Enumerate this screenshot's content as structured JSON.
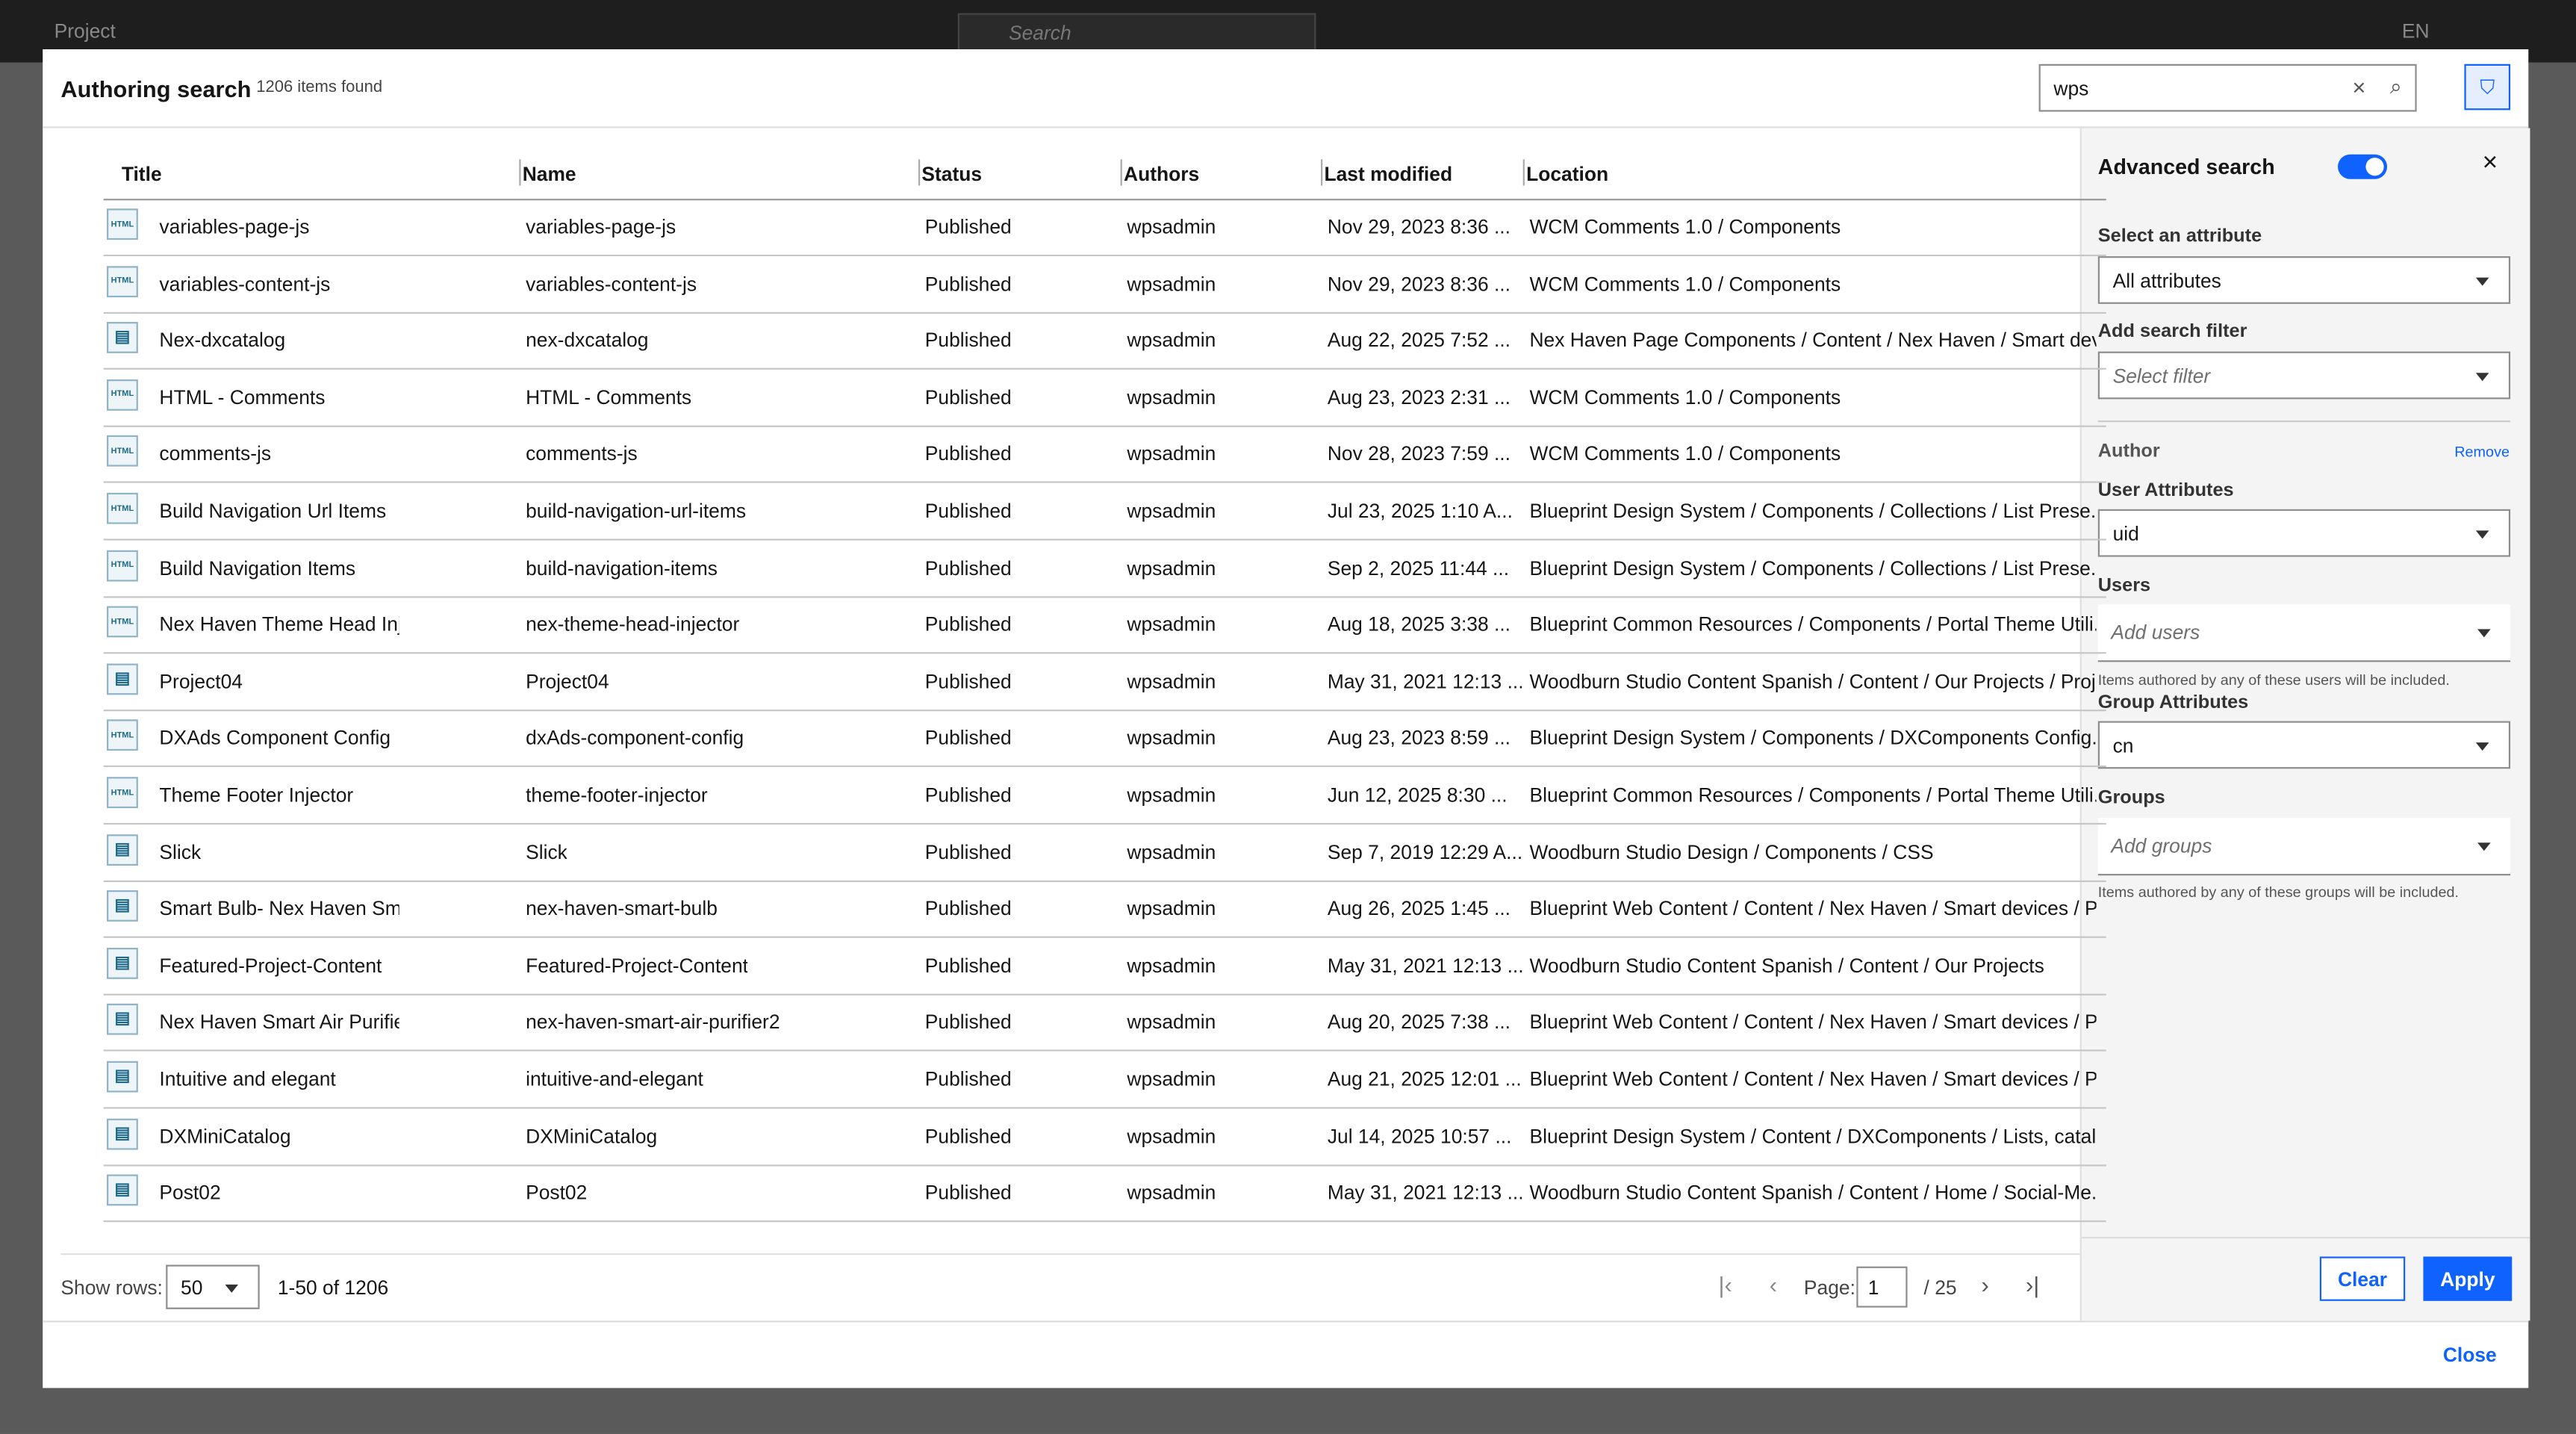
{
  "topbar": {
    "project": "Project",
    "search": "Search",
    "language": "EN"
  },
  "header": {
    "title": "Authoring search",
    "count": "1206 items found",
    "query": "wps"
  },
  "table": {
    "columns": [
      "Title",
      "Name",
      "Status",
      "Authors",
      "Last modified",
      "Location"
    ],
    "html_badge": "HTML",
    "icon_types": [
      "html",
      "html",
      "doc",
      "html",
      "html",
      "html",
      "html",
      "html",
      "doc",
      "html",
      "html",
      "doc",
      "doc",
      "doc",
      "doc",
      "doc",
      "doc",
      "doc"
    ],
    "rows": [
      [
        "variables-page-js",
        "variables-page-js",
        "Published",
        "wpsadmin",
        "Nov 29, 2023 8:36 ...",
        "WCM Comments 1.0 / Components"
      ],
      [
        "variables-content-js",
        "variables-content-js",
        "Published",
        "wpsadmin",
        "Nov 29, 2023 8:36 ...",
        "WCM Comments 1.0 / Components"
      ],
      [
        "Nex-dxcatalog",
        "nex-dxcatalog",
        "Published",
        "wpsadmin",
        "Aug 22, 2025 7:52 ...",
        "Nex Haven Page Components / Content / Nex Haven / Smart dev..."
      ],
      [
        "HTML - Comments",
        "HTML - Comments",
        "Published",
        "wpsadmin",
        "Aug 23, 2023 2:31 ...",
        "WCM Comments 1.0 / Components"
      ],
      [
        "comments-js",
        "comments-js",
        "Published",
        "wpsadmin",
        "Nov 28, 2023 7:59 ...",
        "WCM Comments 1.0 / Components"
      ],
      [
        "Build Navigation Url Items",
        "build-navigation-url-items",
        "Published",
        "wpsadmin",
        "Jul 23, 2025 1:10 A...",
        "Blueprint Design System / Components / Collections / List Prese..."
      ],
      [
        "Build Navigation Items",
        "build-navigation-items",
        "Published",
        "wpsadmin",
        "Sep 2, 2025 11:44 ...",
        "Blueprint Design System / Components / Collections / List Prese..."
      ],
      [
        "Nex Haven Theme Head Inje",
        "nex-theme-head-injector",
        "Published",
        "wpsadmin",
        "Aug 18, 2025 3:38 ...",
        "Blueprint Common Resources / Components / Portal Theme Utili..."
      ],
      [
        "Project04",
        "Project04",
        "Published",
        "wpsadmin",
        "May 31, 2021 12:13 ...",
        "Woodburn Studio Content Spanish / Content / Our Projects / Proj..."
      ],
      [
        "DXAds Component Config",
        "dxAds-component-config",
        "Published",
        "wpsadmin",
        "Aug 23, 2023 8:59 ...",
        "Blueprint Design System / Components / DXComponents Config..."
      ],
      [
        "Theme Footer Injector",
        "theme-footer-injector",
        "Published",
        "wpsadmin",
        "Jun 12, 2025 8:30 ...",
        "Blueprint Common Resources / Components / Portal Theme Utili..."
      ],
      [
        "Slick",
        "Slick",
        "Published",
        "wpsadmin",
        "Sep 7, 2019 12:29 A...",
        "Woodburn Studio Design / Components / CSS"
      ],
      [
        "Smart Bulb- Nex Haven Sma",
        "nex-haven-smart-bulb",
        "Published",
        "wpsadmin",
        "Aug 26, 2025 1:45 ...",
        "Blueprint Web Content / Content / Nex Haven / Smart devices / P..."
      ],
      [
        "Featured-Project-Content",
        "Featured-Project-Content",
        "Published",
        "wpsadmin",
        "May 31, 2021 12:13 ...",
        "Woodburn Studio Content Spanish / Content / Our Projects"
      ],
      [
        "Nex Haven Smart Air Purifie",
        "nex-haven-smart-air-purifier2",
        "Published",
        "wpsadmin",
        "Aug 20, 2025 7:38 ...",
        "Blueprint Web Content / Content / Nex Haven / Smart devices / P..."
      ],
      [
        "Intuitive and elegant",
        "intuitive-and-elegant",
        "Published",
        "wpsadmin",
        "Aug 21, 2025 12:01 ...",
        "Blueprint Web Content / Content / Nex Haven / Smart devices / P..."
      ],
      [
        "DXMiniCatalog",
        "DXMiniCatalog",
        "Published",
        "wpsadmin",
        "Jul 14, 2025 10:57 ...",
        "Blueprint Design System / Content / DXComponents / Lists, catal..."
      ],
      [
        "Post02",
        "Post02",
        "Published",
        "wpsadmin",
        "May 31, 2021 12:13 ...",
        "Woodburn Studio Content Spanish / Content / Home / Social-Me..."
      ]
    ]
  },
  "pagination": {
    "show_rows": "Show rows:",
    "rows_value": "50",
    "range": "1-50 of 1206",
    "page_label": "Page:",
    "page": "1",
    "total": "/ 25"
  },
  "panel": {
    "title": "Advanced search",
    "attribute_label": "Select an attribute",
    "attribute_value": "All attributes",
    "filter_label": "Add search filter",
    "filter_placeholder": "Select filter",
    "author": "Author",
    "remove": "Remove",
    "user_attr_label": "User Attributes",
    "user_attr_value": "uid",
    "users_label": "Users",
    "users_placeholder": "Add users",
    "users_help": "Items authored by any of these users will be included.",
    "group_attr_label": "Group Attributes",
    "group_attr_value": "cn",
    "groups_label": "Groups",
    "groups_placeholder": "Add groups",
    "groups_help": "Items authored by any of these groups will be included.",
    "clear": "Clear",
    "apply": "Apply"
  },
  "footer": {
    "close": "Close"
  }
}
